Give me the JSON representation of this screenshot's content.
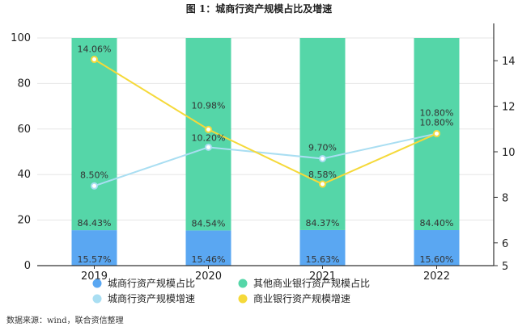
{
  "title": "图 1：城商行资产规模占比及增速",
  "source": "数据来源：wind，联合资信整理",
  "chart_data": {
    "type": "bar+line",
    "categories": [
      "2019",
      "2020",
      "2021",
      "2022"
    ],
    "stacked_bars": [
      {
        "name": "城商行资产规模占比",
        "values": [
          15.57,
          15.46,
          15.63,
          15.6
        ],
        "labels": [
          "15.57%",
          "15.46%",
          "15.63%",
          "15.60%"
        ],
        "color": "#5aa7f2"
      },
      {
        "name": "其他商业银行资产规模占比",
        "values": [
          84.43,
          84.54,
          84.37,
          84.4
        ],
        "labels": [
          "84.43%",
          "84.54%",
          "84.37%",
          "84.40%"
        ],
        "color": "#55d6a8"
      }
    ],
    "lines": [
      {
        "name": "城商行资产规模增速",
        "values": [
          8.5,
          10.2,
          9.7,
          10.8
        ],
        "labels": [
          "8.50%",
          "10.20%",
          "9.70%",
          "10.80%"
        ],
        "color": "#a9def2",
        "axis": "right"
      },
      {
        "name": "商业银行资产规模增速",
        "values": [
          14.06,
          10.98,
          8.58,
          10.8
        ],
        "labels": [
          "14.06%",
          "10.98%",
          "8.58%",
          "10.80%"
        ],
        "color": "#f5d93a",
        "axis": "right"
      }
    ],
    "y_left": {
      "min": 0,
      "max": 100,
      "ticks": [
        "0",
        "20",
        "40",
        "60",
        "80",
        "100"
      ]
    },
    "y_right": {
      "min": 5,
      "max": 15,
      "ticks": [
        "5",
        "6",
        "8",
        "10",
        "12",
        "14"
      ]
    },
    "legend_placement": "bottom"
  }
}
